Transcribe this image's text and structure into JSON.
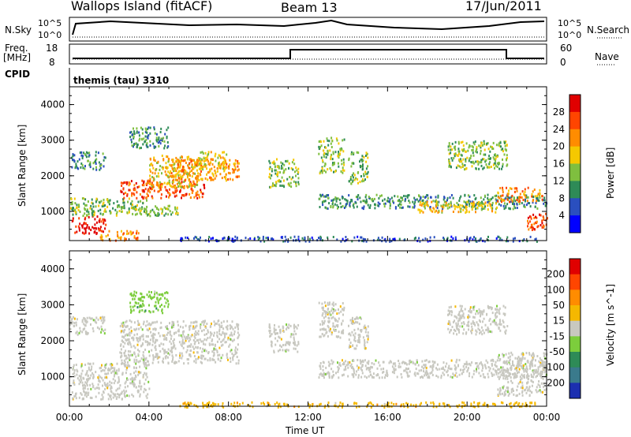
{
  "header": {
    "station": "Wallops Island (fitACF)",
    "beam": "Beam 13",
    "date": "17/Jun/2011"
  },
  "strips": {
    "nsky_label": "N.Sky",
    "nsky_ticks": [
      "10^5",
      "10^0"
    ],
    "nsearch_label": "N.Search",
    "nsearch_ticks": [
      "10^5",
      "10^0"
    ],
    "freq_label": "Freq.",
    "freq_unit": "[MHz]",
    "freq_ticks": [
      "18",
      "8"
    ],
    "nave_label": "Nave",
    "nave_ticks": [
      "60",
      "0"
    ],
    "cpid_label": "CPID",
    "cpid_value": "themis (tau) 3310"
  },
  "chart_data": [
    {
      "type": "heatmap",
      "name": "Power",
      "ylabel": "Slant Range [km]",
      "xlabel": "",
      "yticks": [
        "1000",
        "2000",
        "3000",
        "4000"
      ],
      "ylim": [
        180,
        4500
      ],
      "colorbar": {
        "label": "Power [dB]",
        "ticks": [
          "4",
          "8",
          "12",
          "16",
          "20",
          "24",
          "28"
        ],
        "colors": [
          "#0000ff",
          "#2a4fbf",
          "#2e8b57",
          "#7fbf3f",
          "#f5c800",
          "#ff8c00",
          "#ff4500",
          "#e00000"
        ]
      },
      "patches": [
        {
          "t0": 0.1,
          "t1": 1.8,
          "r0": 400,
          "r1": 900,
          "level": 7
        },
        {
          "t0": 0.0,
          "t1": 4.0,
          "r0": 900,
          "r1": 1400,
          "level": 3
        },
        {
          "t0": 1.5,
          "t1": 3.5,
          "r0": 200,
          "r1": 500,
          "level": 5
        },
        {
          "t0": 2.5,
          "t1": 6.8,
          "r0": 1400,
          "r1": 1900,
          "level": 6
        },
        {
          "t0": 4.0,
          "t1": 6.5,
          "r0": 1700,
          "r1": 2600,
          "level": 4
        },
        {
          "t0": 5.0,
          "t1": 8.5,
          "r0": 1900,
          "r1": 2500,
          "level": 5
        },
        {
          "t0": 6.5,
          "t1": 8.0,
          "r0": 2200,
          "r1": 2700,
          "level": 4
        },
        {
          "t0": 0.0,
          "t1": 1.8,
          "r0": 2200,
          "r1": 2700,
          "level": 2
        },
        {
          "t0": 3.0,
          "t1": 5.0,
          "r0": 2800,
          "r1": 3400,
          "level": 2
        },
        {
          "t0": 3.5,
          "t1": 5.5,
          "r0": 900,
          "r1": 1200,
          "level": 3
        },
        {
          "t0": 10.0,
          "t1": 11.5,
          "r0": 1700,
          "r1": 2500,
          "level": 3
        },
        {
          "t0": 12.5,
          "t1": 13.8,
          "r0": 2100,
          "r1": 3100,
          "level": 3
        },
        {
          "t0": 14.0,
          "t1": 15.0,
          "r0": 1800,
          "r1": 2700,
          "level": 3
        },
        {
          "t0": 12.5,
          "t1": 24.0,
          "r0": 1100,
          "r1": 1500,
          "level": 2
        },
        {
          "t0": 17.5,
          "t1": 21.5,
          "r0": 1000,
          "r1": 1300,
          "level": 4
        },
        {
          "t0": 19.0,
          "t1": 22.0,
          "r0": 2200,
          "r1": 3000,
          "level": 3
        },
        {
          "t0": 21.5,
          "t1": 23.8,
          "r0": 1300,
          "r1": 1700,
          "level": 5
        },
        {
          "t0": 23.0,
          "t1": 24.0,
          "r0": 500,
          "r1": 1000,
          "level": 6
        },
        {
          "t0": 5.5,
          "t1": 23.5,
          "r0": 180,
          "r1": 320,
          "level": 1
        }
      ]
    },
    {
      "type": "heatmap",
      "name": "Velocity",
      "ylabel": "Slant Range [km]",
      "xlabel": "Time UT",
      "xticks": [
        "00:00",
        "04:00",
        "08:00",
        "12:00",
        "16:00",
        "20:00",
        "00:00"
      ],
      "xlim": [
        0,
        24
      ],
      "yticks": [
        "1000",
        "2000",
        "3000",
        "4000"
      ],
      "ylim": [
        180,
        4500
      ],
      "colorbar": {
        "label": "Velocity [m s^-1]",
        "ticks": [
          "200",
          "100",
          "50",
          "15",
          "-15",
          "-50",
          "-100",
          "-200"
        ],
        "colors": [
          "#1c2fb0",
          "#3a7a8c",
          "#2e8b57",
          "#7ccd3c",
          "#c8c8c0",
          "#f5b800",
          "#ff8c00",
          "#ff4500",
          "#e00000"
        ]
      },
      "patches": [
        {
          "t0": 0.1,
          "t1": 4.0,
          "r0": 400,
          "r1": 1400,
          "level": 4
        },
        {
          "t0": 2.5,
          "t1": 8.5,
          "r0": 1400,
          "r1": 2600,
          "level": 4
        },
        {
          "t0": 0.0,
          "t1": 1.8,
          "r0": 2200,
          "r1": 2700,
          "level": 4
        },
        {
          "t0": 3.0,
          "t1": 5.0,
          "r0": 2800,
          "r1": 3400,
          "level": 3
        },
        {
          "t0": 10.0,
          "t1": 11.5,
          "r0": 1700,
          "r1": 2500,
          "level": 4
        },
        {
          "t0": 12.5,
          "t1": 13.8,
          "r0": 2100,
          "r1": 3100,
          "level": 4
        },
        {
          "t0": 14.0,
          "t1": 15.0,
          "r0": 1800,
          "r1": 2700,
          "level": 4
        },
        {
          "t0": 12.5,
          "t1": 24.0,
          "r0": 1000,
          "r1": 1500,
          "level": 4
        },
        {
          "t0": 19.0,
          "t1": 22.0,
          "r0": 2200,
          "r1": 3000,
          "level": 4
        },
        {
          "t0": 21.5,
          "t1": 24.0,
          "r0": 500,
          "r1": 1700,
          "level": 4
        },
        {
          "t0": 5.5,
          "t1": 23.5,
          "r0": 180,
          "r1": 320,
          "level": 5
        }
      ]
    }
  ]
}
